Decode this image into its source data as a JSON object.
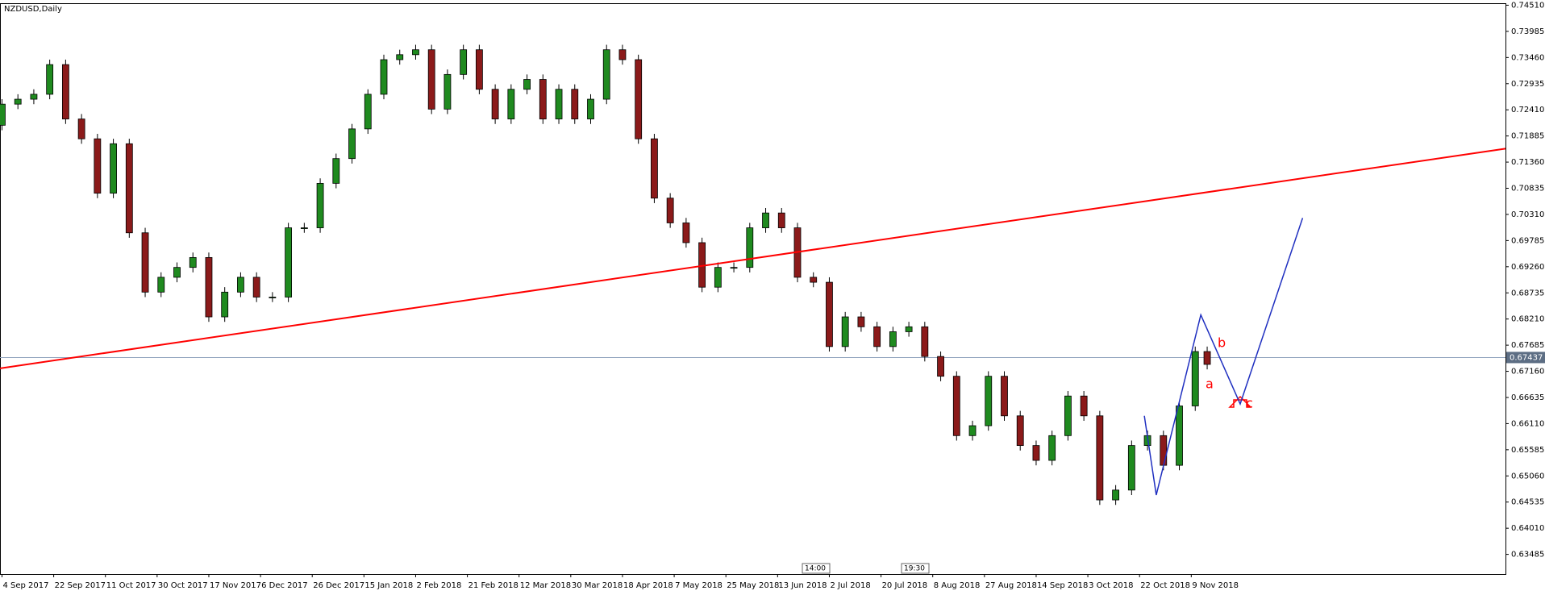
{
  "chart_data": {
    "type": "candlestick",
    "title": "NZDUSD,Daily",
    "up_color": "#1f8a1f",
    "down_color": "#8b1a1a",
    "x": [
      0,
      4,
      8,
      12,
      16,
      20,
      24,
      28,
      32,
      36,
      40,
      44,
      48,
      52,
      56,
      60,
      64,
      68,
      72,
      76,
      80,
      84,
      88,
      92,
      96,
      100,
      104,
      108,
      112,
      116,
      120,
      124,
      128,
      132,
      136,
      140,
      144,
      148,
      152,
      156,
      160,
      164,
      168,
      172,
      176,
      180,
      184,
      188,
      192,
      196,
      200,
      204,
      208,
      212,
      216,
      220,
      224,
      228,
      232,
      236,
      240,
      244,
      248,
      252,
      256,
      260,
      264,
      268,
      272,
      276,
      280,
      284,
      288,
      292,
      296,
      300,
      303
    ],
    "open": [
      0.721,
      0.72524,
      0.72623,
      0.72722,
      0.73318,
      0.72226,
      0.71828,
      0.70736,
      0.71729,
      0.69941,
      0.6875,
      0.69048,
      0.69246,
      0.69445,
      0.68253,
      0.6875,
      0.69048,
      0.6865,
      0.6865,
      0.70041,
      0.70041,
      0.70934,
      0.71431,
      0.72027,
      0.72722,
      0.73417,
      0.73517,
      0.73616,
      0.72424,
      0.7312,
      0.73616,
      0.72822,
      0.72226,
      0.72822,
      0.7302,
      0.72226,
      0.72822,
      0.72226,
      0.72623,
      0.73616,
      0.73417,
      0.71828,
      0.70637,
      0.7014,
      0.69743,
      0.68849,
      0.69246,
      0.69246,
      0.70041,
      0.70339,
      0.70041,
      0.69048,
      0.68948,
      0.67657,
      0.68253,
      0.68054,
      0.67657,
      0.67955,
      0.68054,
      0.67458,
      0.67061,
      0.65869,
      0.66068,
      0.67061,
      0.66266,
      0.6567,
      0.65372,
      0.65869,
      0.66664,
      0.66266,
      0.64578,
      0.64776,
      0.6567,
      0.65869,
      0.65273,
      0.66465,
      0.67557
    ],
    "high": [
      0.72624,
      0.72723,
      0.72822,
      0.73418,
      0.73418,
      0.72326,
      0.71928,
      0.71829,
      0.71829,
      0.70041,
      0.69148,
      0.69346,
      0.69545,
      0.69545,
      0.6885,
      0.69148,
      0.69148,
      0.6875,
      0.70141,
      0.70141,
      0.71034,
      0.71531,
      0.72127,
      0.72822,
      0.73517,
      0.73617,
      0.73716,
      0.73716,
      0.7322,
      0.73716,
      0.73716,
      0.72922,
      0.72922,
      0.7312,
      0.7312,
      0.72922,
      0.72922,
      0.72723,
      0.73716,
      0.73716,
      0.73517,
      0.71928,
      0.70737,
      0.7024,
      0.69843,
      0.69346,
      0.69346,
      0.70141,
      0.70439,
      0.70439,
      0.70141,
      0.69148,
      0.69048,
      0.68353,
      0.68353,
      0.68154,
      0.68055,
      0.68154,
      0.68154,
      0.67558,
      0.67161,
      0.66168,
      0.67161,
      0.67161,
      0.66366,
      0.6577,
      0.65969,
      0.66764,
      0.66764,
      0.66366,
      0.64876,
      0.6577,
      0.65969,
      0.65969,
      0.66565,
      0.67657,
      0.67657
    ],
    "low": [
      0.72,
      0.72424,
      0.72523,
      0.72622,
      0.72126,
      0.71728,
      0.70636,
      0.70636,
      0.69841,
      0.6865,
      0.6865,
      0.68948,
      0.69146,
      0.68153,
      0.68153,
      0.6865,
      0.6855,
      0.6855,
      0.6855,
      0.69941,
      0.69941,
      0.70834,
      0.71331,
      0.71927,
      0.72622,
      0.73317,
      0.73417,
      0.72324,
      0.72324,
      0.7302,
      0.72722,
      0.72126,
      0.72126,
      0.72722,
      0.72126,
      0.72126,
      0.72126,
      0.72126,
      0.72523,
      0.73317,
      0.71728,
      0.70537,
      0.7004,
      0.69643,
      0.68749,
      0.68749,
      0.69146,
      0.69146,
      0.69941,
      0.69941,
      0.68948,
      0.68848,
      0.67557,
      0.67557,
      0.67954,
      0.67557,
      0.67557,
      0.67855,
      0.67358,
      0.66961,
      0.65769,
      0.65769,
      0.65968,
      0.66166,
      0.6557,
      0.65272,
      0.65272,
      0.65769,
      0.66166,
      0.64478,
      0.64478,
      0.64676,
      0.6557,
      0.65173,
      0.65173,
      0.66365,
      0.67199
    ],
    "close": [
      0.72524,
      0.72623,
      0.72722,
      0.73318,
      0.72226,
      0.71828,
      0.70736,
      0.71729,
      0.69941,
      0.6875,
      0.69048,
      0.69246,
      0.69445,
      0.68253,
      0.6875,
      0.69048,
      0.6865,
      0.6865,
      0.70041,
      0.70041,
      0.70934,
      0.71431,
      0.72027,
      0.72722,
      0.73417,
      0.73517,
      0.73616,
      0.72424,
      0.7312,
      0.73616,
      0.72822,
      0.72226,
      0.72822,
      0.7302,
      0.72226,
      0.72822,
      0.72226,
      0.72623,
      0.73616,
      0.73417,
      0.71828,
      0.70637,
      0.7014,
      0.69743,
      0.68849,
      0.69246,
      0.69246,
      0.70041,
      0.70339,
      0.70041,
      0.69048,
      0.68948,
      0.67657,
      0.68253,
      0.68054,
      0.67657,
      0.67955,
      0.68054,
      0.67458,
      0.67061,
      0.65869,
      0.66068,
      0.67061,
      0.66266,
      0.6567,
      0.65372,
      0.65869,
      0.66664,
      0.66266,
      0.64578,
      0.64776,
      0.6567,
      0.65869,
      0.65273,
      0.66465,
      0.67557,
      0.67299
    ],
    "xlim": [
      -0.5,
      378
    ],
    "ylim": [
      0.6309,
      0.7455
    ],
    "xticks": [
      {
        "value": 0,
        "label": "4 Sep 2017"
      },
      {
        "value": 13,
        "label": "22 Sep 2017"
      },
      {
        "value": 26,
        "label": "11 Oct 2017"
      },
      {
        "value": 39,
        "label": "30 Oct 2017"
      },
      {
        "value": 52,
        "label": "17 Nov 2017"
      },
      {
        "value": 65,
        "label": "6 Dec 2017"
      },
      {
        "value": 78,
        "label": "26 Dec 2017"
      },
      {
        "value": 91,
        "label": "15 Jan 2018"
      },
      {
        "value": 104,
        "label": "2 Feb 2018"
      },
      {
        "value": 117,
        "label": "21 Feb 2018"
      },
      {
        "value": 130,
        "label": "12 Mar 2018"
      },
      {
        "value": 143,
        "label": "30 Mar 2018"
      },
      {
        "value": 156,
        "label": "18 Apr 2018"
      },
      {
        "value": 169,
        "label": "7 May 2018"
      },
      {
        "value": 182,
        "label": "25 May 2018"
      },
      {
        "value": 195,
        "label": "13 Jun 2018"
      },
      {
        "value": 208,
        "label": "2 Jul 2018"
      },
      {
        "value": 221,
        "label": "20 Jul 2018"
      },
      {
        "value": 234,
        "label": "8 Aug 2018"
      },
      {
        "value": 247,
        "label": "27 Aug 2018"
      },
      {
        "value": 260,
        "label": "14 Sep 2018"
      },
      {
        "value": 273,
        "label": "3 Oct 2018"
      },
      {
        "value": 286,
        "label": "22 Oct 2018"
      },
      {
        "value": 299,
        "label": "9 Nov 2018"
      }
    ],
    "yticks": [
      {
        "value": 0.7451,
        "label": "0.74510"
      },
      0.73985,
      {
        "value": 0.7346,
        "label": "0.73460"
      },
      0.72935,
      {
        "value": 0.7241,
        "label": "0.72410"
      },
      0.71885,
      {
        "value": 0.7136,
        "label": "0.71360"
      },
      0.70835,
      {
        "value": 0.7031,
        "label": "0.70310"
      },
      0.69785,
      {
        "value": 0.6926,
        "label": "0.69260"
      },
      0.68735,
      {
        "value": 0.6821,
        "label": "0.68210"
      },
      0.67685,
      {
        "value": 0.6716,
        "label": "0.67160"
      },
      0.66635,
      {
        "value": 0.6611,
        "label": "0.66110"
      },
      0.65585,
      {
        "value": 0.6506,
        "label": "0.65060"
      },
      0.64535,
      {
        "value": 0.6401,
        "label": "0.64010"
      },
      0.63485
    ],
    "current_price": 0.67437,
    "lines": [
      {
        "color": "#ff0000",
        "x": [
          -0.5,
          378
        ],
        "values": [
          0.6722,
          0.7163
        ]
      },
      {
        "color": "#2030c0",
        "x": [
          287.2,
          290.2,
          301.4,
          311.3,
          327.0
        ],
        "values": [
          0.66266,
          0.64677,
          0.68293,
          0.66505,
          0.70239
        ]
      }
    ],
    "annotations": [
      {
        "text": "a",
        "color": "#ff0000"
      },
      {
        "text": "b",
        "color": "#ff0000"
      },
      {
        "text": "c",
        "color": "#ff0000"
      }
    ],
    "markers": [
      {
        "text": "14:00"
      },
      {
        "text": "19:30"
      }
    ]
  }
}
